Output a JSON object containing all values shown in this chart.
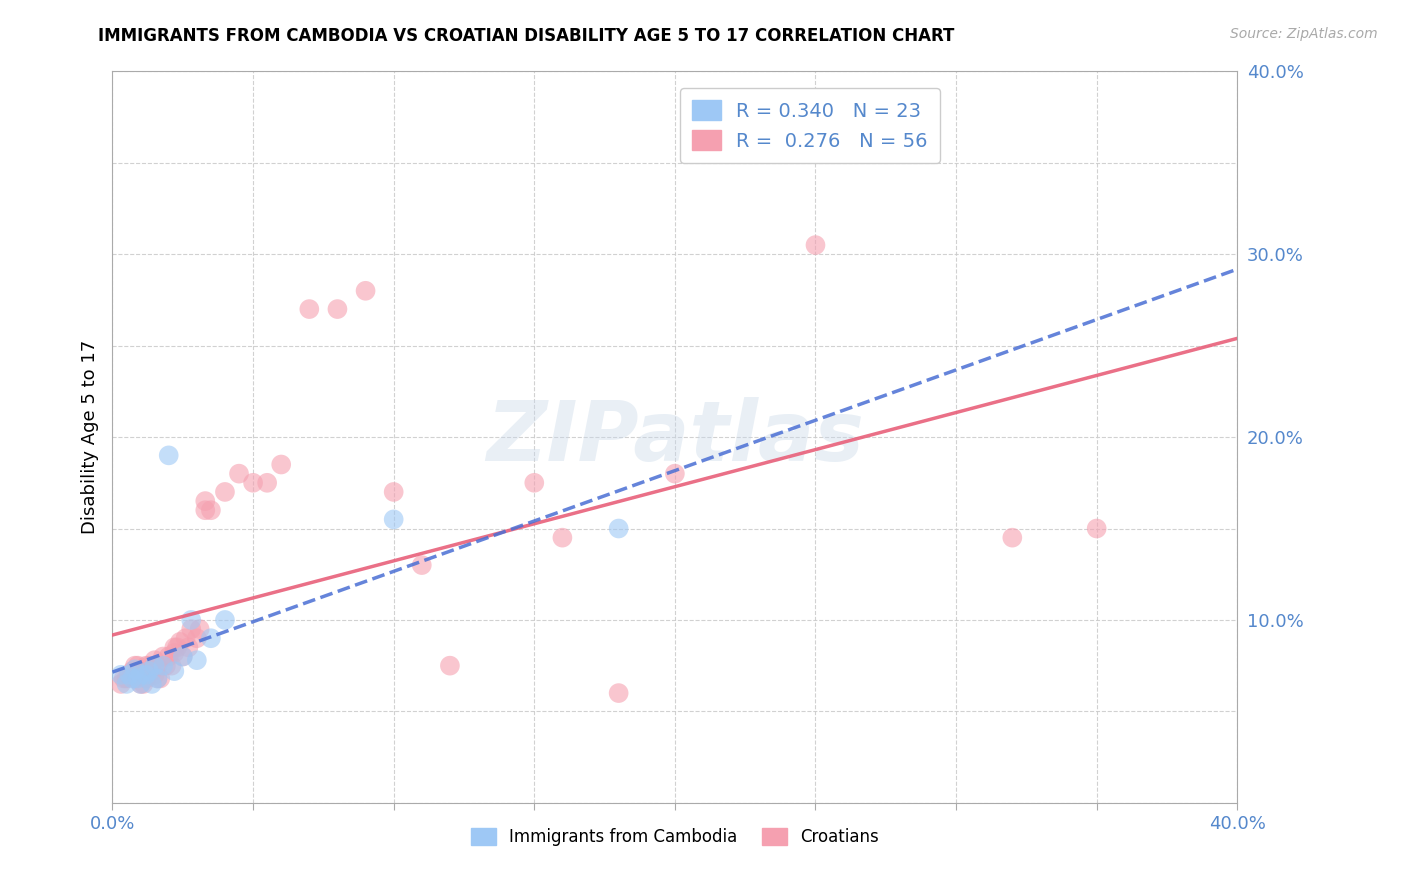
{
  "title": "IMMIGRANTS FROM CAMBODIA VS CROATIAN DISABILITY AGE 5 TO 17 CORRELATION CHART",
  "source_text": "Source: ZipAtlas.com",
  "ylabel": "Disability Age 5 to 17",
  "xlim": [
    0.0,
    0.4
  ],
  "ylim": [
    0.0,
    0.4
  ],
  "xticks": [
    0.0,
    0.05,
    0.1,
    0.15,
    0.2,
    0.25,
    0.3,
    0.35,
    0.4
  ],
  "yticks": [
    0.0,
    0.05,
    0.1,
    0.15,
    0.2,
    0.25,
    0.3,
    0.35,
    0.4
  ],
  "legend_R_cambodia": "0.340",
  "legend_N_cambodia": "23",
  "legend_R_croatian": "0.276",
  "legend_N_croatian": "56",
  "cambodia_color": "#9ec8f5",
  "croatian_color": "#f5a0b0",
  "cambodia_line_color": "#4a6fd4",
  "croatian_line_color": "#e8607a",
  "watermark": "ZIPatlas",
  "tick_color": "#5588cc",
  "cambodia_x": [
    0.003,
    0.005,
    0.006,
    0.007,
    0.008,
    0.009,
    0.01,
    0.01,
    0.012,
    0.013,
    0.014,
    0.015,
    0.016,
    0.018,
    0.02,
    0.022,
    0.025,
    0.028,
    0.03,
    0.035,
    0.04,
    0.1,
    0.18
  ],
  "cambodia_y": [
    0.07,
    0.065,
    0.07,
    0.068,
    0.073,
    0.068,
    0.07,
    0.065,
    0.07,
    0.072,
    0.065,
    0.075,
    0.068,
    0.075,
    0.19,
    0.072,
    0.08,
    0.1,
    0.078,
    0.09,
    0.1,
    0.155,
    0.15
  ],
  "croatian_x": [
    0.003,
    0.004,
    0.005,
    0.006,
    0.007,
    0.008,
    0.008,
    0.009,
    0.01,
    0.01,
    0.011,
    0.012,
    0.012,
    0.013,
    0.013,
    0.014,
    0.015,
    0.015,
    0.016,
    0.016,
    0.017,
    0.018,
    0.019,
    0.02,
    0.021,
    0.022,
    0.022,
    0.023,
    0.024,
    0.025,
    0.026,
    0.027,
    0.028,
    0.03,
    0.031,
    0.033,
    0.033,
    0.035,
    0.04,
    0.045,
    0.05,
    0.055,
    0.06,
    0.07,
    0.08,
    0.09,
    0.1,
    0.11,
    0.12,
    0.15,
    0.16,
    0.18,
    0.2,
    0.25,
    0.32,
    0.35
  ],
  "croatian_y": [
    0.065,
    0.068,
    0.068,
    0.07,
    0.072,
    0.068,
    0.075,
    0.075,
    0.07,
    0.065,
    0.065,
    0.075,
    0.068,
    0.075,
    0.072,
    0.072,
    0.07,
    0.078,
    0.075,
    0.068,
    0.068,
    0.08,
    0.075,
    0.08,
    0.075,
    0.082,
    0.085,
    0.085,
    0.088,
    0.08,
    0.09,
    0.085,
    0.095,
    0.09,
    0.095,
    0.16,
    0.165,
    0.16,
    0.17,
    0.18,
    0.175,
    0.175,
    0.185,
    0.27,
    0.27,
    0.28,
    0.17,
    0.13,
    0.075,
    0.175,
    0.145,
    0.06,
    0.18,
    0.305,
    0.145,
    0.15
  ]
}
